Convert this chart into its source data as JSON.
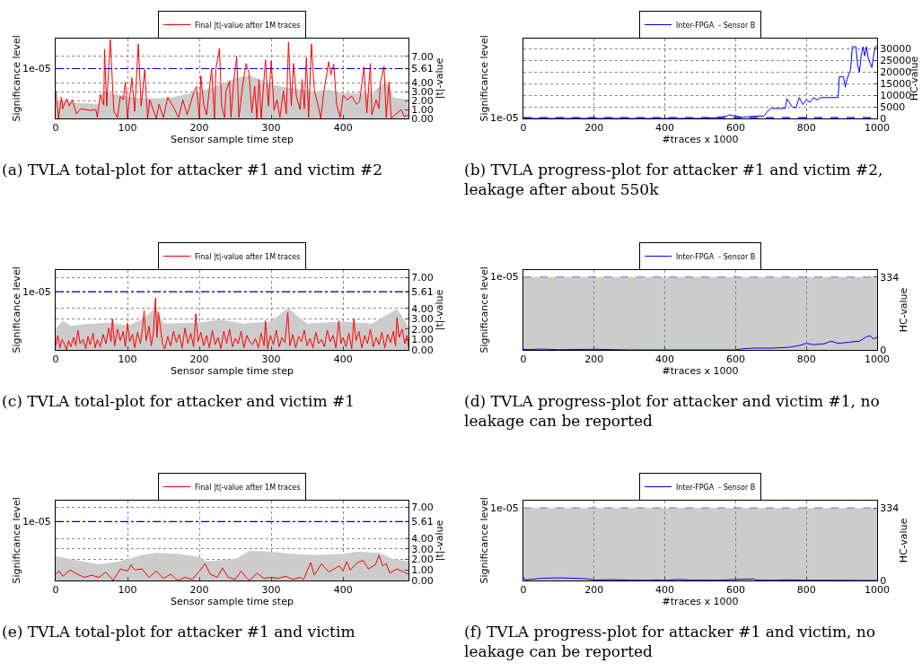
{
  "chart_data": [
    {
      "type": "line",
      "xlabel": "Sensor sample time step",
      "ylabel": "Significance level",
      "y2label": "|t|-value",
      "legend": "top",
      "grid": true,
      "marker": "none",
      "line_style": "solid",
      "xlim": [
        0,
        491
      ],
      "xticks": [
        0,
        100,
        200,
        300,
        400
      ],
      "y2lim": [
        0,
        9
      ],
      "y2ticks": [
        {
          "value": 0,
          "label": "0.00"
        },
        {
          "value": 1,
          "label": "1.00"
        },
        {
          "value": 2,
          "label": "2.00"
        },
        {
          "value": 3,
          "label": "3.00"
        },
        {
          "value": 4,
          "label": "4.00"
        },
        {
          "value": 5.61,
          "label": "5.61"
        },
        {
          "value": 7,
          "label": "7.00"
        }
      ],
      "ref_lines": [
        {
          "axis": "y2",
          "value": 5.61,
          "label": "1e-05",
          "color": "#0000cc",
          "line_style": "dashed"
        }
      ],
      "annotations": [
        "(a) TVLA total-plot for attacker #1 and victim #2"
      ],
      "series": [
        {
          "type": "area",
          "color": "#cccccc",
          "axis": "y2",
          "x": [
            0,
            30,
            60,
            65,
            90,
            100,
            130,
            160,
            200,
            220,
            250,
            270,
            300,
            330,
            360,
            380,
            400,
            440,
            460,
            470,
            491
          ],
          "values": [
            2.0,
            1.7,
            1.6,
            3.0,
            2.6,
            2.4,
            2.2,
            2.3,
            3.0,
            3.5,
            4.5,
            4.8,
            3.8,
            3.3,
            3.0,
            3.2,
            2.8,
            2.8,
            4.2,
            2.3,
            2.1
          ]
        },
        {
          "name": "Final |t|-value after 1M traces",
          "color": "#ff0000",
          "axis": "y2",
          "x": [
            0,
            4,
            8,
            10,
            15,
            19,
            23,
            29,
            35,
            48,
            56,
            58,
            62,
            67,
            68,
            71,
            76,
            81,
            86,
            90,
            94,
            97,
            100,
            102,
            106,
            110,
            115,
            119,
            124,
            128,
            131,
            140,
            144,
            150,
            156,
            165,
            171,
            177,
            183,
            192,
            196,
            200,
            202,
            206,
            210,
            217,
            221,
            223,
            228,
            231,
            235,
            237,
            242,
            244,
            248,
            252,
            255,
            260,
            265,
            269,
            273,
            277,
            280,
            283,
            286,
            292,
            296,
            300,
            304,
            308,
            312,
            317,
            321,
            324,
            328,
            331,
            335,
            340,
            343,
            346,
            349,
            352,
            356,
            360,
            364,
            369,
            373,
            380,
            383,
            387,
            391,
            396,
            400,
            406,
            412,
            419,
            423,
            429,
            433,
            438,
            440,
            446,
            450,
            452,
            457,
            460,
            464,
            467,
            472,
            481,
            485,
            491
          ],
          "values": [
            3.1,
            0,
            2.4,
            1.1,
            2.2,
            1.4,
            2.1,
            0.5,
            1.1,
            0.9,
            1.0,
            0.1,
            2.7,
            1.5,
            7.8,
            1.4,
            8.9,
            0.8,
            0.1,
            2.5,
            2.1,
            4.1,
            0,
            1.6,
            4.6,
            0.8,
            8.4,
            1.4,
            5.5,
            0,
            2.1,
            0,
            1.6,
            0.1,
            2.4,
            1.1,
            0.1,
            2.1,
            0.4,
            2.9,
            3.6,
            0,
            4.8,
            1.6,
            0.4,
            5.6,
            0,
            5.6,
            7.9,
            1.4,
            0.1,
            3.1,
            4.2,
            0.1,
            4.4,
            7.0,
            0.1,
            3.6,
            6.2,
            5.1,
            0.6,
            3.6,
            0,
            4.4,
            0,
            6.6,
            1.4,
            6.5,
            0.9,
            2.1,
            0.1,
            3.1,
            0.5,
            8.6,
            1.4,
            6.2,
            2.5,
            1.0,
            4.4,
            1.1,
            6.9,
            0.1,
            8.4,
            3.1,
            1.9,
            0,
            2.9,
            6.4,
            4.9,
            6.1,
            1.6,
            0.1,
            2.6,
            2.1,
            2.5,
            1.6,
            1.9,
            5.8,
            0.6,
            6.2,
            0.4,
            2.1,
            1.1,
            4.0,
            5.9,
            0.1,
            4.1,
            0,
            0.4,
            1.0,
            0.2,
            0.4
          ]
        }
      ]
    },
    {
      "type": "line",
      "xlabel": "#traces x 1000",
      "ylabel": "Significance level",
      "y2label": "HC-value",
      "legend": "top",
      "grid": true,
      "marker": "none",
      "line_style": "solid",
      "xlim": [
        0,
        1000
      ],
      "xticks": [
        0,
        200,
        400,
        600,
        800,
        1000
      ],
      "y2lim": [
        0,
        34500
      ],
      "y2ticks": [
        0,
        5000,
        10000,
        15000,
        20000,
        25000,
        30000
      ],
      "ref_lines": [
        {
          "axis": "y2",
          "value": 334,
          "label": "1e-05",
          "color": "#0000ff",
          "line_style": "dashed"
        }
      ],
      "annotations": [
        "(b) TVLA progress-plot for attacker #1 and victim #2, leakage after about 550k"
      ],
      "series": [
        {
          "name": "Inter-FPGA  - Sensor B",
          "color": "#0000ff",
          "axis": "y2",
          "x": [
            0,
            500,
            540,
            575,
            580,
            600,
            620,
            640,
            660,
            680,
            690,
            700,
            740,
            745,
            760,
            770,
            780,
            790,
            800,
            810,
            820,
            830,
            840,
            890,
            893,
            905,
            910,
            915,
            925,
            930,
            940,
            945,
            950,
            955,
            960,
            965,
            970,
            975,
            980,
            985,
            990,
            995,
            1000
          ],
          "values": [
            0,
            0,
            300,
            1000,
            1500,
            1000,
            500,
            800,
            1000,
            1000,
            3000,
            4300,
            4300,
            8500,
            5000,
            4500,
            9000,
            6000,
            8000,
            7000,
            9000,
            8000,
            9000,
            9000,
            18000,
            18000,
            13500,
            17000,
            21000,
            31000,
            31000,
            23000,
            20000,
            27000,
            31000,
            27000,
            31000,
            26000,
            24000,
            22000,
            27000,
            31000,
            31000
          ]
        }
      ]
    },
    {
      "type": "line",
      "xlabel": "Sensor sample time step",
      "ylabel": "Significance level",
      "y2label": "|t|-value",
      "legend": "top",
      "grid": true,
      "marker": "none",
      "line_style": "solid",
      "xlim": [
        0,
        491
      ],
      "xticks": [
        0,
        100,
        200,
        300,
        400
      ],
      "y2lim": [
        0,
        7.7
      ],
      "y2ticks": [
        {
          "value": 0,
          "label": "0.00"
        },
        {
          "value": 1,
          "label": "1.00"
        },
        {
          "value": 2,
          "label": "2.00"
        },
        {
          "value": 3,
          "label": "3.00"
        },
        {
          "value": 4,
          "label": "4.00"
        },
        {
          "value": 5.61,
          "label": "5.61"
        },
        {
          "value": 7,
          "label": "7.00"
        }
      ],
      "ref_lines": [
        {
          "axis": "y2",
          "value": 5.61,
          "label": "1e-05",
          "color": "#0000cc",
          "line_style": "dashed"
        }
      ],
      "annotations": [
        "(c) TVLA total-plot for attacker and victim #1"
      ],
      "series": [
        {
          "type": "area",
          "color": "#cccccc",
          "axis": "y2",
          "x": [
            0,
            10,
            20,
            50,
            80,
            100,
            120,
            139,
            150,
            200,
            230,
            260,
            300,
            323,
            350,
            400,
            440,
            475,
            491
          ],
          "values": [
            2.0,
            2.8,
            2.3,
            2.5,
            2.6,
            2.3,
            2.9,
            4.0,
            2.5,
            2.6,
            2.9,
            2.5,
            2.7,
            4.0,
            2.5,
            2.7,
            2.5,
            3.9,
            2.2
          ]
        },
        {
          "name": "Final |t|-value after 1M traces",
          "color": "#ff0000",
          "axis": "y2",
          "x": [
            0,
            3,
            6,
            9,
            12,
            15,
            18,
            21,
            25,
            28,
            31,
            34,
            38,
            42,
            45,
            48,
            52,
            55,
            58,
            62,
            66,
            70,
            74,
            77,
            79,
            82,
            86,
            90,
            94,
            97,
            100,
            103,
            107,
            110,
            114,
            118,
            121,
            123,
            126,
            130,
            133,
            136,
            139,
            141,
            143,
            146,
            149,
            152,
            156,
            160,
            164,
            168,
            172,
            176,
            180,
            184,
            188,
            192,
            195,
            198,
            202,
            206,
            210,
            214,
            218,
            222,
            226,
            230,
            234,
            238,
            242,
            246,
            250,
            254,
            258,
            262,
            266,
            270,
            274,
            278,
            282,
            286,
            290,
            292,
            295,
            299,
            303,
            307,
            311,
            315,
            319,
            323,
            326,
            330,
            334,
            338,
            342,
            346,
            350,
            354,
            358,
            362,
            366,
            370,
            374,
            378,
            382,
            386,
            390,
            394,
            397,
            400,
            404,
            408,
            412,
            415,
            418,
            422,
            426,
            430,
            434,
            438,
            442,
            446,
            450,
            454,
            458,
            462,
            466,
            470,
            473,
            475,
            478,
            482,
            486,
            489,
            491
          ],
          "values": [
            0.4,
            1.4,
            0.2,
            1.0,
            0.6,
            0.0,
            0.9,
            0.3,
            1.2,
            0.4,
            1.9,
            0.6,
            1.0,
            0.1,
            1.3,
            0.5,
            1.6,
            0.2,
            1.0,
            0.3,
            1.5,
            0.6,
            2.1,
            0.8,
            3.0,
            0.4,
            2.0,
            0.9,
            1.8,
            0.3,
            2.6,
            0.8,
            1.5,
            0.2,
            1.7,
            0.6,
            2.1,
            3.8,
            0.9,
            2.3,
            0.4,
            1.6,
            5.0,
            1.2,
            3.6,
            2.0,
            0.5,
            0.1,
            1.3,
            0.4,
            1.8,
            0.7,
            1.5,
            0.2,
            2.1,
            0.6,
            1.6,
            0.3,
            3.5,
            0.8,
            1.7,
            0.4,
            1.4,
            0.2,
            1.9,
            0.5,
            1.2,
            0.1,
            1.8,
            0.6,
            2.0,
            0.3,
            1.1,
            0.6,
            1.8,
            0.2,
            1.4,
            0.8,
            0.5,
            1.1,
            0.2,
            1.6,
            0.4,
            2.8,
            0.1,
            1.4,
            0.5,
            1.9,
            0.3,
            1.2,
            0.7,
            3.6,
            0.4,
            1.5,
            0.2,
            1.3,
            0.8,
            1.9,
            0.4,
            1.1,
            0.2,
            1.7,
            0.6,
            1.0,
            0.3,
            1.9,
            0.8,
            1.4,
            0.2,
            2.8,
            0.6,
            1.2,
            0.3,
            1.6,
            0.1,
            3.0,
            0.9,
            1.8,
            0.2,
            1.4,
            0.6,
            2.0,
            0.3,
            1.2,
            0.5,
            1.7,
            0.2,
            1.5,
            0.7,
            1.8,
            0.4,
            3.1,
            1.2,
            2.0,
            0.6,
            1.4,
            0.2
          ]
        }
      ]
    },
    {
      "type": "line",
      "xlabel": "#traces x 1000",
      "ylabel": "Significance level",
      "y2label": "HC-value",
      "legend": "top",
      "grid": "x",
      "marker": "none",
      "line_style": "solid",
      "xlim": [
        0,
        1000
      ],
      "xticks": [
        0,
        200,
        400,
        600,
        800,
        1000
      ],
      "y2lim": [
        0,
        366
      ],
      "y2ticks": [
        0,
        334
      ],
      "ref_lines": [
        {
          "axis": "y2",
          "value": 334,
          "label": "1e-05",
          "color": "#7f7fff",
          "line_style": "dashed"
        }
      ],
      "bands": [
        {
          "axis": "y2",
          "from": 0,
          "to": 334,
          "color": "#cccccc"
        }
      ],
      "annotations": [
        "(d) TVLA progress-plot for attacker and victim #1, no leakage can be reported"
      ],
      "series": [
        {
          "name": "Inter-FPGA  - Sensor B",
          "color": "#0000ff",
          "axis": "y2",
          "x": [
            0,
            20,
            50,
            100,
            200,
            300,
            600,
            620,
            650,
            700,
            750,
            780,
            800,
            820,
            850,
            870,
            890,
            920,
            950,
            970,
            980,
            990,
            1000
          ],
          "values": [
            3,
            2,
            4,
            1,
            3,
            0,
            0,
            5,
            8,
            8,
            12,
            20,
            30,
            24,
            28,
            40,
            30,
            35,
            40,
            60,
            65,
            50,
            58
          ]
        }
      ]
    },
    {
      "type": "line",
      "xlabel": "Sensor sample time step",
      "ylabel": "Significance level",
      "y2label": "|t|-value",
      "legend": "top",
      "grid": true,
      "marker": "none",
      "line_style": "solid",
      "xlim": [
        0,
        491
      ],
      "xticks": [
        0,
        100,
        200,
        300,
        400
      ],
      "y2lim": [
        0,
        7.6
      ],
      "y2ticks": [
        {
          "value": 0,
          "label": "0.00"
        },
        {
          "value": 1,
          "label": "1.00"
        },
        {
          "value": 2,
          "label": "2.00"
        },
        {
          "value": 3,
          "label": "3.00"
        },
        {
          "value": 4,
          "label": "4.00"
        },
        {
          "value": 5.61,
          "label": "5.61"
        },
        {
          "value": 7,
          "label": "7.00"
        }
      ],
      "ref_lines": [
        {
          "axis": "y2",
          "value": 5.61,
          "label": "1e-05",
          "color": "#0000cc",
          "line_style": "dashed"
        }
      ],
      "annotations": [
        "(e) TVLA total-plot for attacker #1 and victim"
      ],
      "series": [
        {
          "type": "area",
          "color": "#cccccc",
          "axis": "y2",
          "x": [
            0,
            20,
            60,
            90,
            120,
            140,
            170,
            200,
            210,
            250,
            270,
            300,
            330,
            360,
            400,
            420,
            450,
            470,
            491
          ],
          "values": [
            2.3,
            2.0,
            1.5,
            1.8,
            2.4,
            2.6,
            2.5,
            2.2,
            1.8,
            2.0,
            2.8,
            2.7,
            2.5,
            2.4,
            2.5,
            2.7,
            2.6,
            2.0,
            1.8
          ]
        },
        {
          "name": "Final |t|-value after 1M traces",
          "color": "#ff0000",
          "axis": "y2",
          "x": [
            0,
            5,
            10,
            20,
            30,
            40,
            50,
            60,
            70,
            80,
            90,
            100,
            105,
            110,
            120,
            130,
            140,
            150,
            160,
            170,
            180,
            190,
            200,
            208,
            215,
            225,
            232,
            240,
            250,
            258,
            265,
            270,
            280,
            290,
            300,
            310,
            320,
            330,
            340,
            345,
            350,
            355,
            360,
            370,
            380,
            390,
            395,
            400,
            405,
            410,
            420,
            428,
            435,
            445,
            450,
            455,
            460,
            465,
            475,
            485,
            491
          ],
          "values": [
            0.6,
            0.9,
            0.4,
            1.0,
            0.6,
            0.3,
            0.5,
            0.3,
            0.8,
            0.0,
            1.1,
            0.9,
            1.5,
            1.0,
            1.1,
            0.3,
            0.9,
            0.2,
            0.6,
            0.0,
            0.3,
            0.1,
            0.9,
            1.6,
            0.6,
            0.3,
            1.2,
            0.3,
            0.1,
            0.9,
            0.3,
            0.0,
            0.7,
            0.2,
            0.3,
            0.2,
            0.4,
            0.1,
            0.3,
            0.1,
            0.9,
            1.7,
            0.5,
            1.6,
            0.8,
            1.2,
            1.4,
            0.9,
            1.8,
            1.0,
            1.7,
            1.9,
            1.1,
            1.5,
            2.4,
            1.4,
            1.6,
            0.7,
            1.1,
            0.8,
            0.6
          ]
        }
      ]
    },
    {
      "type": "line",
      "xlabel": "#traces x 1000",
      "ylabel": "Significance level",
      "y2label": "HC-value",
      "legend": "top",
      "grid": "x",
      "marker": "none",
      "line_style": "solid",
      "xlim": [
        0,
        1000
      ],
      "xticks": [
        0,
        200,
        400,
        600,
        800,
        1000
      ],
      "y2lim": [
        0,
        368
      ],
      "y2ticks": [
        0,
        334
      ],
      "ref_lines": [
        {
          "axis": "y2",
          "value": 334,
          "label": "1e-05",
          "color": "#7f7fff",
          "line_style": "dashed"
        }
      ],
      "bands": [
        {
          "axis": "y2",
          "from": 0,
          "to": 334,
          "color": "#cccccc"
        }
      ],
      "annotations": [
        "(f) TVLA progress-plot for attacker #1 and victim, no leakage can be reported"
      ],
      "series": [
        {
          "name": "Inter-FPGA  - Sensor B",
          "color": "#0000ff",
          "axis": "y2",
          "x": [
            0,
            5,
            20,
            50,
            100,
            150,
            180,
            200,
            250,
            300,
            350,
            380,
            400,
            440,
            480,
            500,
            550,
            600,
            650,
            660,
            700,
            750,
            800,
            1000
          ],
          "values": [
            15,
            3,
            5,
            10,
            12,
            10,
            8,
            2,
            4,
            2,
            1,
            3,
            1,
            5,
            1,
            2,
            1,
            5,
            7,
            2,
            1,
            3,
            1,
            0
          ]
        }
      ]
    }
  ]
}
